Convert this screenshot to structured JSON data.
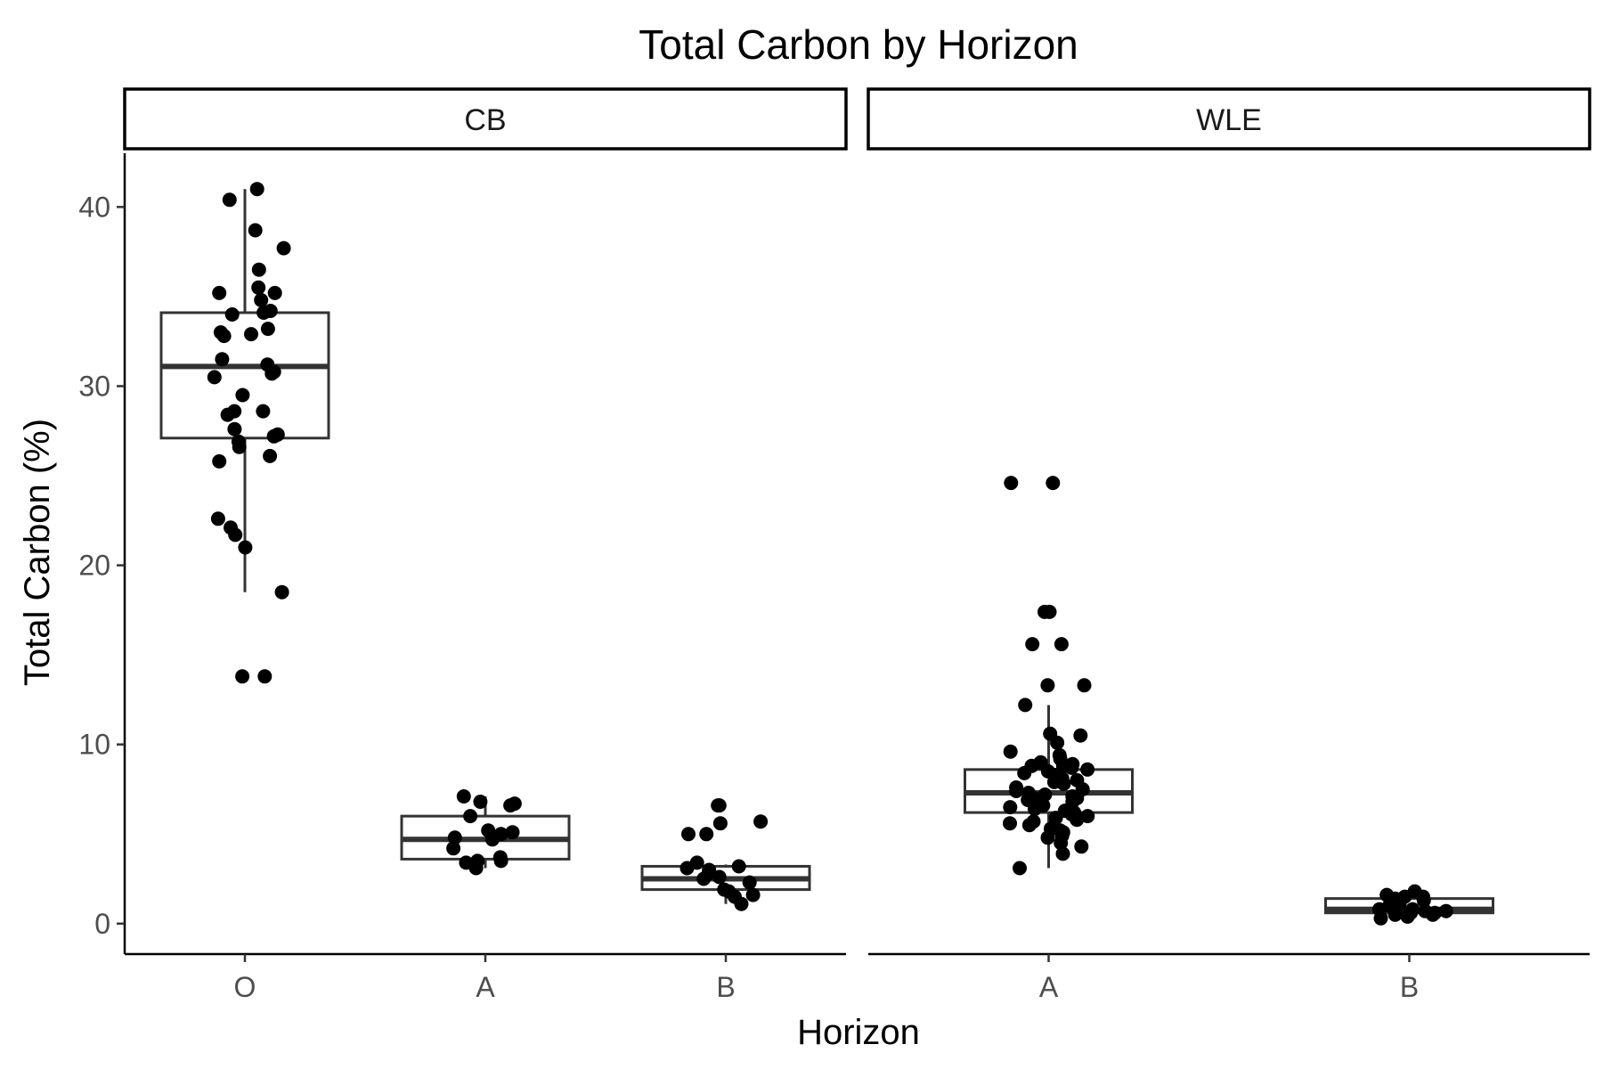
{
  "chart_data": {
    "type": "box",
    "title": "Total Carbon by Horizon",
    "xlabel": "Horizon",
    "ylabel": "Total Carbon (%)",
    "ylim": [
      -1.7,
      43.0
    ],
    "yticks": [
      0,
      10,
      20,
      30,
      40
    ],
    "grid": false,
    "legend": "none",
    "facets": [
      {
        "name": "CB",
        "categories": [
          "O",
          "A",
          "B"
        ],
        "boxes": [
          {
            "category": "O",
            "stats": {
              "lower_whisker": 18.5,
              "q1": 27.1,
              "median": 31.1,
              "q3": 34.1,
              "upper_whisker": 41.0
            },
            "points": [
              41.0,
              40.4,
              38.7,
              37.7,
              36.5,
              35.5,
              35.2,
              35.2,
              34.8,
              34.2,
              34.1,
              34.0,
              33.2,
              33.0,
              32.9,
              32.8,
              31.5,
              31.2,
              30.8,
              30.7,
              30.5,
              29.5,
              28.6,
              28.6,
              28.4,
              27.6,
              27.3,
              27.2,
              26.9,
              26.6,
              26.1,
              25.8,
              22.6,
              22.1,
              21.7,
              21.0,
              18.5,
              13.8,
              13.8
            ]
          },
          {
            "category": "A",
            "stats": {
              "lower_whisker": 3.1,
              "q1": 3.6,
              "median": 4.7,
              "q3": 6.0,
              "upper_whisker": 7.1
            },
            "points": [
              7.1,
              6.8,
              6.7,
              6.6,
              6.0,
              5.2,
              5.1,
              5.0,
              4.8,
              4.7,
              4.2,
              3.7,
              3.5,
              3.5,
              3.4,
              3.1
            ]
          },
          {
            "category": "B",
            "stats": {
              "lower_whisker": 1.1,
              "q1": 1.9,
              "median": 2.5,
              "q3": 3.2,
              "upper_whisker": 3.3
            },
            "points": [
              6.6,
              6.6,
              5.7,
              5.6,
              5.0,
              5.0,
              3.4,
              3.2,
              3.1,
              3.0,
              2.8,
              2.6,
              2.5,
              2.3,
              1.9,
              1.8,
              1.6,
              1.5,
              1.1
            ]
          }
        ]
      },
      {
        "name": "WLE",
        "categories": [
          "A",
          "B"
        ],
        "boxes": [
          {
            "category": "A",
            "stats": {
              "lower_whisker": 3.1,
              "q1": 6.2,
              "median": 7.3,
              "q3": 8.6,
              "upper_whisker": 12.2
            },
            "points": [
              24.6,
              24.6,
              17.4,
              17.4,
              15.6,
              15.6,
              13.3,
              13.3,
              12.2,
              10.6,
              10.5,
              10.1,
              9.6,
              9.4,
              9.2,
              9.0,
              8.9,
              8.8,
              8.8,
              8.7,
              8.6,
              8.5,
              8.4,
              8.3,
              8.1,
              8.0,
              7.9,
              7.8,
              7.6,
              7.5,
              7.4,
              7.3,
              7.2,
              7.1,
              7.0,
              7.0,
              6.9,
              6.8,
              6.7,
              6.6,
              6.5,
              6.4,
              6.3,
              6.2,
              6.1,
              6.0,
              5.9,
              5.8,
              5.7,
              5.6,
              5.5,
              5.3,
              5.2,
              5.1,
              4.9,
              4.8,
              4.5,
              4.3,
              3.9,
              3.1
            ]
          },
          {
            "category": "B",
            "stats": {
              "lower_whisker": 0.3,
              "q1": 0.6,
              "median": 0.8,
              "q3": 1.4,
              "upper_whisker": 1.8
            },
            "points": [
              1.8,
              1.6,
              1.5,
              1.5,
              1.4,
              1.3,
              1.2,
              1.1,
              1.0,
              0.9,
              0.8,
              0.8,
              0.7,
              0.7,
              0.6,
              0.6,
              0.5,
              0.5,
              0.4,
              0.4,
              0.3
            ]
          }
        ]
      }
    ]
  }
}
